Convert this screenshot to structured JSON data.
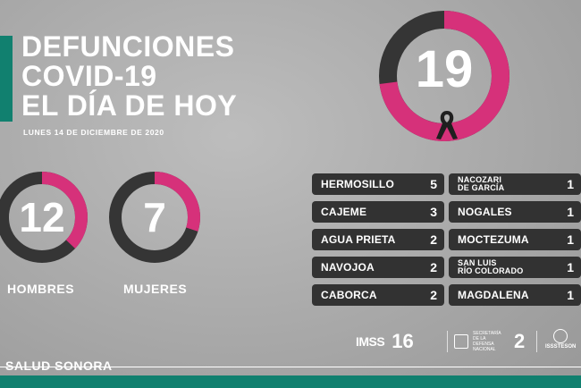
{
  "title": [
    "DEFUNCIONES",
    "COVID-19",
    "EL DÍA DE HOY"
  ],
  "date": "LUNES 14 DE DICIEMBRE DE 2020",
  "total": {
    "value": "19",
    "fraction": 0.73
  },
  "men": {
    "value": "12",
    "label": "HOMBRES",
    "fraction": 0.37
  },
  "women": {
    "value": "7",
    "label": "MUJERES",
    "fraction": 0.3
  },
  "cities_left": [
    {
      "name": "HERMOSILLO",
      "count": "5"
    },
    {
      "name": "CAJEME",
      "count": "3"
    },
    {
      "name": "AGUA PRIETA",
      "count": "2"
    },
    {
      "name": "NAVOJOA",
      "count": "2"
    },
    {
      "name": "CABORCA",
      "count": "2"
    }
  ],
  "cities_right": [
    {
      "name": "NACOZARI",
      "name2": "DE GARCÍA",
      "count": "1"
    },
    {
      "name": "NOGALES",
      "count": "1"
    },
    {
      "name": "MOCTEZUMA",
      "count": "1"
    },
    {
      "name": "SAN LUIS",
      "name2": "RÍO COLORADO",
      "count": "1"
    },
    {
      "name": "MAGDALENA",
      "count": "1"
    }
  ],
  "logos": {
    "imss_mark": "IMSS",
    "imss_count": "16",
    "sep_text": "SECRETARÍA DE LA DEFENSA NACIONAL",
    "sep_count": "2",
    "isss_text": "ISSSTESON"
  },
  "footer": "SALUD SONORA",
  "colors": {
    "pink": "#d6317a",
    "dark": "#353535",
    "teal": "#11806f"
  }
}
